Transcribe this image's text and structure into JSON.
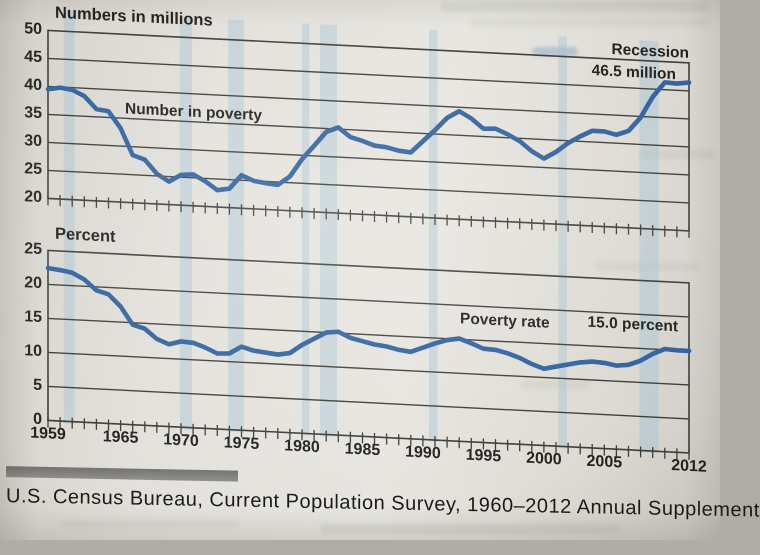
{
  "figure": {
    "legend_label": "Recession",
    "top_chart": {
      "title": "Numbers in millions",
      "series_label": "Number in poverty",
      "end_value_label": "46.5 million"
    },
    "bottom_chart": {
      "title": "Percent",
      "series_label": "Poverty rate",
      "end_value_label": "15.0 percent"
    },
    "caption": "U.S. Census Bureau, Current Population Survey, 1960–2012 Annual Supplement"
  },
  "colors": {
    "paper": "#e2dfd9",
    "line": "#30619f",
    "grid": "#3e3c36",
    "recession_band": "#9fc0d4",
    "text": "#201f1c",
    "caption_bar": "#878683"
  },
  "chart_data": [
    {
      "type": "line",
      "title": "Numbers in millions",
      "xlabel": "",
      "ylabel": "Numbers in millions",
      "xlim": [
        1959,
        2012
      ],
      "ylim": [
        20,
        50
      ],
      "yticks": [
        50,
        45,
        40,
        35,
        30,
        25,
        20
      ],
      "xticks": [
        1959,
        1965,
        1970,
        1975,
        1980,
        1985,
        1990,
        1995,
        2000,
        2005,
        2012
      ],
      "grid": true,
      "annotations": [
        "Recession",
        "46.5 million",
        "Number in poverty"
      ],
      "recession_bands": [
        [
          1960.3,
          1961.2
        ],
        [
          1969.9,
          1970.9
        ],
        [
          1973.9,
          1975.2
        ],
        [
          1980.0,
          1980.6
        ],
        [
          1981.5,
          1982.9
        ],
        [
          1990.5,
          1991.2
        ],
        [
          2001.2,
          2001.9
        ],
        [
          2007.9,
          2009.5
        ]
      ],
      "x": [
        1959,
        1960,
        1961,
        1962,
        1963,
        1964,
        1965,
        1966,
        1967,
        1968,
        1969,
        1970,
        1971,
        1972,
        1973,
        1974,
        1975,
        1976,
        1977,
        1978,
        1979,
        1980,
        1981,
        1982,
        1983,
        1984,
        1985,
        1986,
        1987,
        1988,
        1989,
        1990,
        1991,
        1992,
        1993,
        1994,
        1995,
        1996,
        1997,
        1998,
        1999,
        2000,
        2001,
        2002,
        2003,
        2004,
        2005,
        2006,
        2007,
        2008,
        2009,
        2010,
        2011,
        2012
      ],
      "series": [
        {
          "name": "Number in poverty",
          "values": [
            39.5,
            39.9,
            39.6,
            38.6,
            36.4,
            36.1,
            33.2,
            28.5,
            27.8,
            25.4,
            24.1,
            25.4,
            25.6,
            24.5,
            23.0,
            23.4,
            25.9,
            25.0,
            24.7,
            24.5,
            26.1,
            29.3,
            31.8,
            34.4,
            35.3,
            33.7,
            33.1,
            32.4,
            32.2,
            31.7,
            31.5,
            33.6,
            35.7,
            38.0,
            39.3,
            38.1,
            36.4,
            36.5,
            35.6,
            34.5,
            32.8,
            31.6,
            32.9,
            34.6,
            35.9,
            37.0,
            37.0,
            36.5,
            37.3,
            39.8,
            43.6,
            46.3,
            46.2,
            46.5
          ]
        }
      ]
    },
    {
      "type": "line",
      "title": "Percent",
      "xlabel": "",
      "ylabel": "Percent",
      "xlim": [
        1959,
        2012
      ],
      "ylim": [
        0,
        25
      ],
      "yticks": [
        25,
        20,
        15,
        10,
        5,
        0
      ],
      "xticks": [
        1959,
        1965,
        1970,
        1975,
        1980,
        1985,
        1990,
        1995,
        2000,
        2005,
        2012
      ],
      "grid": true,
      "annotations": [
        "Poverty rate",
        "15.0 percent"
      ],
      "recession_bands": [
        [
          1960.3,
          1961.2
        ],
        [
          1969.9,
          1970.9
        ],
        [
          1973.9,
          1975.2
        ],
        [
          1980.0,
          1980.6
        ],
        [
          1981.5,
          1982.9
        ],
        [
          1990.5,
          1991.2
        ],
        [
          2001.2,
          2001.9
        ],
        [
          2007.9,
          2009.5
        ]
      ],
      "x": [
        1959,
        1960,
        1961,
        1962,
        1963,
        1964,
        1965,
        1966,
        1967,
        1968,
        1969,
        1970,
        1971,
        1972,
        1973,
        1974,
        1975,
        1976,
        1977,
        1978,
        1979,
        1980,
        1981,
        1982,
        1983,
        1984,
        1985,
        1986,
        1987,
        1988,
        1989,
        1990,
        1991,
        1992,
        1993,
        1994,
        1995,
        1996,
        1997,
        1998,
        1999,
        2000,
        2001,
        2002,
        2003,
        2004,
        2005,
        2006,
        2007,
        2008,
        2009,
        2010,
        2011,
        2012
      ],
      "series": [
        {
          "name": "Poverty rate",
          "values": [
            22.4,
            22.2,
            21.9,
            21.0,
            19.5,
            19.0,
            17.3,
            14.7,
            14.2,
            12.8,
            12.1,
            12.6,
            12.5,
            11.9,
            11.1,
            11.2,
            12.3,
            11.8,
            11.6,
            11.4,
            11.7,
            13.0,
            14.0,
            15.0,
            15.2,
            14.4,
            14.0,
            13.6,
            13.4,
            13.0,
            12.8,
            13.5,
            14.2,
            14.8,
            15.1,
            14.5,
            13.8,
            13.7,
            13.3,
            12.7,
            11.9,
            11.3,
            11.7,
            12.1,
            12.5,
            12.7,
            12.6,
            12.3,
            12.5,
            13.2,
            14.3,
            15.1,
            15.0,
            15.0
          ]
        }
      ]
    }
  ]
}
